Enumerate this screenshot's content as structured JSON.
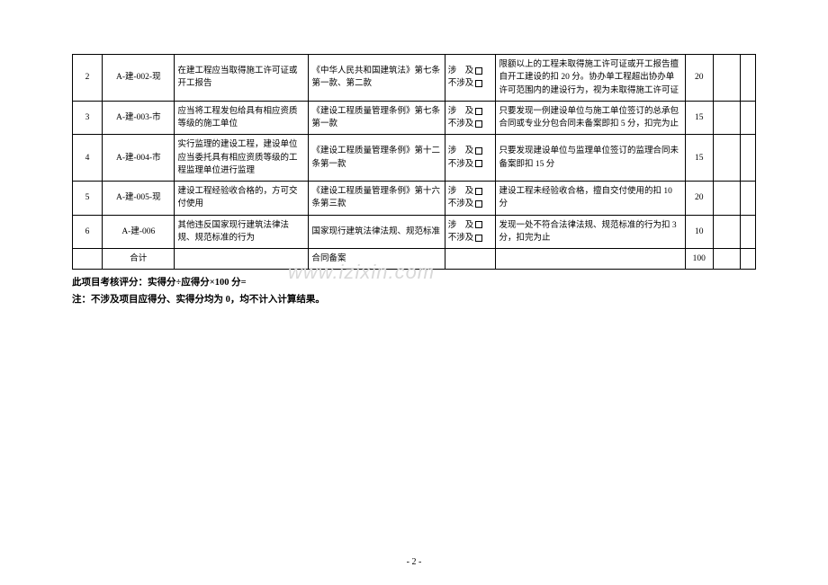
{
  "table": {
    "rows": [
      {
        "idx": "2",
        "code": "A-建-002-现",
        "item": "在建工程应当取得施工许可证或开工报告",
        "basis": "《中华人民共和国建筑法》第七条第一款、第二款",
        "check1": "涉　及",
        "check2": "不涉及",
        "std": "限额以上的工程未取得施工许可证或开工报告擅自开工建设的扣 20 分。协办单工程超出协办单许可范围内的建设行为，视为未取得施工许可证",
        "score": "20"
      },
      {
        "idx": "3",
        "code": "A-建-003-市",
        "item": "应当将工程发包给具有相应资质等级的施工单位",
        "basis": "《建设工程质量管理条例》第七条第一款",
        "check1": "涉　及",
        "check2": "不涉及",
        "std": "只要发现一例建设单位与施工单位签订的总承包合同或专业分包合同未备案即扣 5 分，扣完为止",
        "score": "15"
      },
      {
        "idx": "4",
        "code": "A-建-004-市",
        "item": "实行监理的建设工程，建设单位应当委托具有相应资质等级的工程监理单位进行监理",
        "basis": "《建设工程质量管理条例》第十二条第一款",
        "check1": "涉　及",
        "check2": "不涉及",
        "std": "只要发现建设单位与监理单位签订的监理合同未备案即扣 15 分",
        "score": "15"
      },
      {
        "idx": "5",
        "code": "A-建-005-现",
        "item": "建设工程经验收合格的，方可交付使用",
        "basis": "《建设工程质量管理条例》第十六条第三款",
        "check1": "涉　及",
        "check2": "不涉及",
        "std": "建设工程未经验收合格，擅自交付使用的扣 10 分",
        "score": "20"
      },
      {
        "idx": "6",
        "code": "A-建-006",
        "item": "其他违反国家现行建筑法律法规、规范标准的行为",
        "basis": "国家现行建筑法律法规、规范标准",
        "check1": "涉　及",
        "check2": "不涉及",
        "std": "发现一处不符合法律法规、规范标准的行为扣 3 分，扣完为止",
        "score": "10"
      }
    ],
    "total_label": "合计",
    "total_basis": "合同备案",
    "total_score": "100"
  },
  "notes": {
    "line1": "此项目考核评分：实得分÷应得分×100 分=",
    "line2": "注：不涉及项目应得分、实得分均为 0，均不计入计算结果。"
  },
  "watermark": "www.izixin.com",
  "page_number": "- 2 -"
}
